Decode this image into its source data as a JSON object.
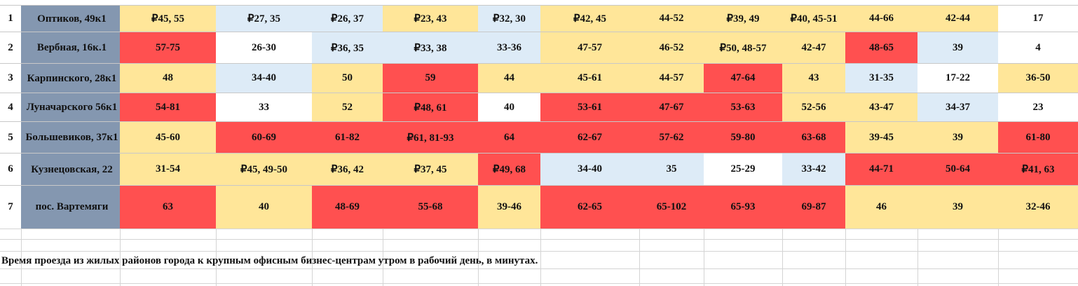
{
  "rows": [
    {
      "num": "1",
      "address": "Оптиков, 49к1",
      "cells": [
        "₽45, 55",
        "₽27, 35",
        "₽26, 37",
        "₽23, 43",
        "₽32, 30",
        "₽42, 45",
        "44-52",
        "₽39, 49",
        "₽40, 45-51",
        "44-66",
        "42-44",
        "17"
      ]
    },
    {
      "num": "2",
      "address": "Вербная, 16к.1",
      "cells": [
        "57-75",
        "26-30",
        "₽36, 35",
        "₽33, 38",
        "33-36",
        "47-57",
        "46-52",
        "₽50, 48-57",
        "42-47",
        "48-65",
        "39",
        "4"
      ]
    },
    {
      "num": "3",
      "address": "Карпинского, 28к1",
      "cells": [
        "48",
        "34-40",
        "50",
        "59",
        "44",
        "45-61",
        "44-57",
        "47-64",
        "43",
        "31-35",
        "17-22",
        "36-50"
      ]
    },
    {
      "num": "4",
      "address": "Луначарского 56к1",
      "cells": [
        "54-81",
        "33",
        "52",
        "₽48, 61",
        "40",
        "53-61",
        "47-67",
        "53-63",
        "52-56",
        "43-47",
        "34-37",
        "23"
      ]
    },
    {
      "num": "5",
      "address": "Большевиков, 37к1",
      "cells": [
        "45-60",
        "60-69",
        "61-82",
        "₽61, 81-93",
        "64",
        "62-67",
        "57-62",
        "59-80",
        "63-68",
        "39-45",
        "39",
        "61-80"
      ]
    },
    {
      "num": "6",
      "address": "Кузнецовская, 22",
      "cells": [
        "31-54",
        "₽45, 49-50",
        "₽36, 42",
        "₽37, 45",
        "₽49, 68",
        "34-40",
        "35",
        "25-29",
        "33-42",
        "44-71",
        "50-64",
        "₽41, 63"
      ]
    },
    {
      "num": "7",
      "address": "пос. Вартемяги",
      "cells": [
        "63",
        "40",
        "48-69",
        "55-68",
        "39-46",
        "62-65",
        "65-102",
        "65-93",
        "69-87",
        "46",
        "39",
        "32-46"
      ]
    }
  ],
  "colors": {
    "yellow": "#ffe699",
    "blue": "#ddebf7",
    "red": "#ff5050",
    "white": "#ffffff",
    "address_bg": "#8497b0"
  },
  "cell_colors": [
    [
      "y",
      "b",
      "b",
      "y",
      "b",
      "y",
      "y",
      "y",
      "y",
      "y",
      "y",
      "w"
    ],
    [
      "r",
      "w",
      "b",
      "b",
      "b",
      "y",
      "y",
      "y",
      "y",
      "r",
      "b",
      "w"
    ],
    [
      "y",
      "b",
      "y",
      "r",
      "y",
      "y",
      "y",
      "r",
      "y",
      "b",
      "w",
      "y"
    ],
    [
      "r",
      "w",
      "y",
      "r",
      "w",
      "r",
      "r",
      "r",
      "y",
      "y",
      "b",
      "w"
    ],
    [
      "y",
      "r",
      "r",
      "r",
      "r",
      "r",
      "r",
      "r",
      "r",
      "y",
      "y",
      "r"
    ],
    [
      "y",
      "y",
      "y",
      "y",
      "r",
      "b",
      "b",
      "w",
      "b",
      "r",
      "r",
      "r"
    ],
    [
      "r",
      "y",
      "r",
      "r",
      "y",
      "r",
      "r",
      "r",
      "r",
      "y",
      "y",
      "y"
    ]
  ],
  "caption": "Время проезда из жилых районов города к крупным офисным бизнес-центрам утром в рабочий день, в минутах."
}
